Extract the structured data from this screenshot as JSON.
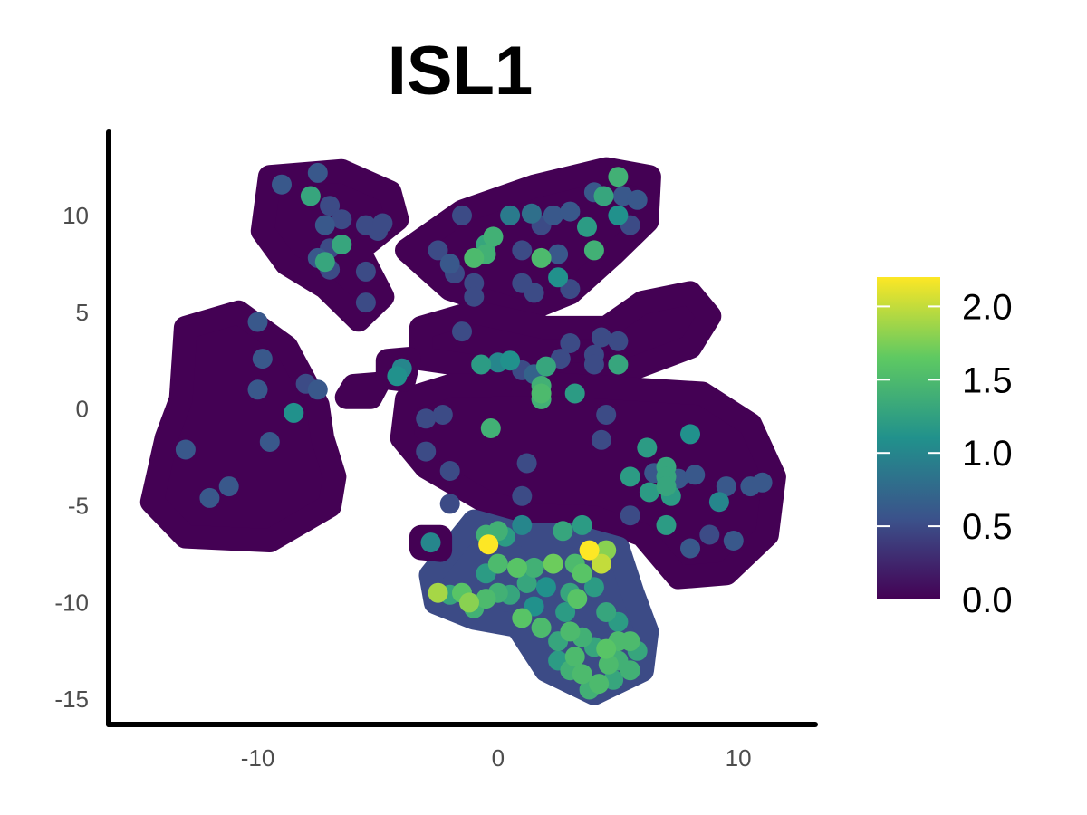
{
  "chart_data": {
    "type": "scatter",
    "title": "ISL1",
    "xlabel": "",
    "ylabel": "",
    "xlim": [
      -16.2,
      13.2
    ],
    "ylim": [
      -16.3,
      14.3
    ],
    "x_ticks": [
      -10,
      0,
      10
    ],
    "y_ticks": [
      -15,
      -10,
      -5,
      0,
      5,
      10
    ],
    "grid": false,
    "color_scale": {
      "name": "viridis",
      "min": 0.0,
      "max": 2.2,
      "ticks": [
        0.0,
        0.5,
        1.0,
        1.5,
        2.0
      ],
      "tick_labels": [
        "0.0",
        "0.5",
        "1.0",
        "1.5",
        "2.0"
      ],
      "legend_position": "right",
      "stops": [
        "#440154",
        "#3b528b",
        "#21918c",
        "#5ec962",
        "#fde725"
      ]
    },
    "background_regions": [
      {
        "name": "cluster-top-left",
        "value": 0.0,
        "outline": [
          [
            -9.5,
            12.0
          ],
          [
            -6.5,
            12.3
          ],
          [
            -4.5,
            11.2
          ],
          [
            -4.2,
            9.8
          ],
          [
            -5.8,
            8.2
          ],
          [
            -4.8,
            5.8
          ],
          [
            -5.8,
            4.6
          ],
          [
            -7.2,
            6.3
          ],
          [
            -8.8,
            7.5
          ],
          [
            -9.8,
            9.2
          ]
        ]
      },
      {
        "name": "cluster-top-right",
        "value": 0.0,
        "outline": [
          [
            -3.8,
            8.2
          ],
          [
            -1.5,
            10.2
          ],
          [
            1.5,
            11.5
          ],
          [
            4.5,
            12.4
          ],
          [
            6.3,
            12.0
          ],
          [
            6.2,
            9.7
          ],
          [
            4.8,
            8.0
          ],
          [
            3.0,
            6.0
          ],
          [
            1.0,
            5.0
          ],
          [
            -2.0,
            6.2
          ]
        ]
      },
      {
        "name": "cluster-left",
        "value": 0.0,
        "outline": [
          [
            -13.0,
            4.2
          ],
          [
            -10.8,
            5.0
          ],
          [
            -8.8,
            3.2
          ],
          [
            -7.5,
            0.2
          ],
          [
            -7.3,
            -1.5
          ],
          [
            -6.8,
            -3.5
          ],
          [
            -7.0,
            -5.0
          ],
          [
            -9.5,
            -6.8
          ],
          [
            -13.0,
            -6.6
          ],
          [
            -14.4,
            -4.8
          ],
          [
            -13.8,
            -1.5
          ],
          [
            -13.2,
            0.5
          ]
        ]
      },
      {
        "name": "cluster-mid-upper",
        "value": 0.0,
        "outline": [
          [
            -3.2,
            4.2
          ],
          [
            -1.0,
            5.0
          ],
          [
            2.0,
            4.2
          ],
          [
            4.5,
            4.2
          ],
          [
            6.0,
            5.5
          ],
          [
            8.0,
            6.0
          ],
          [
            8.8,
            4.8
          ],
          [
            8.0,
            3.2
          ],
          [
            5.0,
            1.8
          ],
          [
            2.0,
            1.8
          ],
          [
            -1.0,
            2.2
          ],
          [
            -3.2,
            2.6
          ]
        ]
      },
      {
        "name": "cluster-center",
        "value": 0.0,
        "outline": [
          [
            -3.8,
            0.5
          ],
          [
            -2.0,
            1.2
          ],
          [
            2.0,
            1.3
          ],
          [
            6.0,
            1.0
          ],
          [
            8.5,
            0.8
          ],
          [
            10.5,
            -0.8
          ],
          [
            11.5,
            -3.5
          ],
          [
            11.2,
            -6.5
          ],
          [
            9.5,
            -8.5
          ],
          [
            7.5,
            -8.7
          ],
          [
            6.0,
            -6.5
          ],
          [
            4.0,
            -5.6
          ],
          [
            1.5,
            -5.5
          ],
          [
            -0.5,
            -4.8
          ],
          [
            -3.0,
            -3.0
          ],
          [
            -4.0,
            -1.5
          ]
        ]
      },
      {
        "name": "cluster-bottom",
        "value": 0.5,
        "outline": [
          [
            -2.8,
            -8.6
          ],
          [
            -1.0,
            -5.8
          ],
          [
            1.0,
            -6.5
          ],
          [
            3.0,
            -6.5
          ],
          [
            5.0,
            -7.2
          ],
          [
            5.6,
            -9.5
          ],
          [
            6.2,
            -11.5
          ],
          [
            6.0,
            -13.5
          ],
          [
            4.0,
            -14.7
          ],
          [
            2.0,
            -13.5
          ],
          [
            0.8,
            -11.2
          ],
          [
            -1.0,
            -10.8
          ],
          [
            -2.6,
            -10.0
          ]
        ]
      },
      {
        "name": "island-a",
        "value": 0.0,
        "outline": [
          [
            -6.0,
            1.2
          ],
          [
            -5.0,
            1.3
          ],
          [
            -5.3,
            0.6
          ],
          [
            -6.3,
            0.6
          ]
        ]
      },
      {
        "name": "island-b",
        "value": 0.0,
        "outline": [
          [
            -4.6,
            2.5
          ],
          [
            -3.7,
            2.6
          ],
          [
            -3.9,
            1.5
          ],
          [
            -4.6,
            1.6
          ]
        ]
      },
      {
        "name": "island-c",
        "value": 0.0,
        "outline": [
          [
            -3.2,
            -6.6
          ],
          [
            -2.4,
            -6.6
          ],
          [
            -2.4,
            -7.3
          ],
          [
            -3.2,
            -7.2
          ]
        ]
      }
    ],
    "points": [
      {
        "x": -9.0,
        "y": 11.6,
        "v": 0.6
      },
      {
        "x": -7.5,
        "y": 12.2,
        "v": 0.6
      },
      {
        "x": -7.8,
        "y": 11.0,
        "v": 1.3
      },
      {
        "x": -7.0,
        "y": 10.5,
        "v": 0.5
      },
      {
        "x": -6.5,
        "y": 9.8,
        "v": 0.5
      },
      {
        "x": -7.2,
        "y": 9.5,
        "v": 0.6
      },
      {
        "x": -6.5,
        "y": 8.5,
        "v": 1.3
      },
      {
        "x": -7.0,
        "y": 8.3,
        "v": 0.5
      },
      {
        "x": -7.5,
        "y": 7.8,
        "v": 0.6
      },
      {
        "x": -7.0,
        "y": 7.2,
        "v": 0.5
      },
      {
        "x": -7.2,
        "y": 7.6,
        "v": 1.3
      },
      {
        "x": -5.5,
        "y": 7.1,
        "v": 0.5
      },
      {
        "x": -5.5,
        "y": 5.5,
        "v": 0.5
      },
      {
        "x": -5.5,
        "y": 9.5,
        "v": 0.5
      },
      {
        "x": -5.0,
        "y": 9.2,
        "v": 0.5
      },
      {
        "x": -4.8,
        "y": 9.6,
        "v": 0.5
      },
      {
        "x": -0.5,
        "y": 8.5,
        "v": 1.3
      },
      {
        "x": -0.2,
        "y": 8.9,
        "v": 1.4
      },
      {
        "x": 0.5,
        "y": 10.0,
        "v": 0.9
      },
      {
        "x": 1.4,
        "y": 10.1,
        "v": 0.8
      },
      {
        "x": 2.3,
        "y": 10.0,
        "v": 0.6
      },
      {
        "x": 1.8,
        "y": 9.5,
        "v": 0.5
      },
      {
        "x": 3.0,
        "y": 10.2,
        "v": 0.6
      },
      {
        "x": 3.7,
        "y": 9.4,
        "v": 1.2
      },
      {
        "x": 4.0,
        "y": 11.2,
        "v": 0.6
      },
      {
        "x": 4.4,
        "y": 11.0,
        "v": 1.3
      },
      {
        "x": 5.0,
        "y": 12.0,
        "v": 1.4
      },
      {
        "x": 5.2,
        "y": 11.0,
        "v": 0.6
      },
      {
        "x": 5.8,
        "y": 10.8,
        "v": 0.6
      },
      {
        "x": 5.0,
        "y": 10.0,
        "v": 1.1
      },
      {
        "x": 5.5,
        "y": 9.5,
        "v": 0.5
      },
      {
        "x": 4.0,
        "y": 8.2,
        "v": 1.4
      },
      {
        "x": 2.5,
        "y": 8.0,
        "v": 0.6
      },
      {
        "x": 1.8,
        "y": 7.8,
        "v": 1.5
      },
      {
        "x": 1.0,
        "y": 8.2,
        "v": 0.5
      },
      {
        "x": -1.0,
        "y": 7.8,
        "v": 1.5
      },
      {
        "x": -0.5,
        "y": 8.0,
        "v": 1.4
      },
      {
        "x": -2.0,
        "y": 7.5,
        "v": 0.6
      },
      {
        "x": -1.8,
        "y": 7.0,
        "v": 0.5
      },
      {
        "x": -1.0,
        "y": 6.5,
        "v": 0.5
      },
      {
        "x": 1.0,
        "y": 6.5,
        "v": 0.5
      },
      {
        "x": 1.5,
        "y": 6.0,
        "v": 0.5
      },
      {
        "x": 2.5,
        "y": 6.8,
        "v": 1.1
      },
      {
        "x": 3.0,
        "y": 6.2,
        "v": 0.5
      },
      {
        "x": -1.0,
        "y": 5.8,
        "v": 0.5
      },
      {
        "x": -1.5,
        "y": 10.0,
        "v": 0.5
      },
      {
        "x": -2.5,
        "y": 8.2,
        "v": 0.5
      },
      {
        "x": -10.0,
        "y": 4.5,
        "v": 0.6
      },
      {
        "x": -9.8,
        "y": 2.6,
        "v": 0.6
      },
      {
        "x": -8.0,
        "y": 1.3,
        "v": 0.5
      },
      {
        "x": -7.5,
        "y": 1.0,
        "v": 0.6
      },
      {
        "x": -10.0,
        "y": 1.0,
        "v": 0.6
      },
      {
        "x": -8.5,
        "y": -0.2,
        "v": 1.1
      },
      {
        "x": -9.5,
        "y": -1.7,
        "v": 0.6
      },
      {
        "x": -13.0,
        "y": -2.1,
        "v": 0.6
      },
      {
        "x": -12.0,
        "y": -4.6,
        "v": 0.6
      },
      {
        "x": -11.2,
        "y": -4.0,
        "v": 0.6
      },
      {
        "x": -4.0,
        "y": 2.1,
        "v": 1.0
      },
      {
        "x": -4.2,
        "y": 1.7,
        "v": 1.1
      },
      {
        "x": -1.5,
        "y": 4.0,
        "v": 0.5
      },
      {
        "x": -0.7,
        "y": 2.3,
        "v": 1.2
      },
      {
        "x": 0.0,
        "y": 2.4,
        "v": 1.0
      },
      {
        "x": 0.5,
        "y": 2.5,
        "v": 1.1
      },
      {
        "x": 1.0,
        "y": 2.0,
        "v": 0.5
      },
      {
        "x": 1.5,
        "y": 1.8,
        "v": 0.7
      },
      {
        "x": 1.8,
        "y": 1.2,
        "v": 1.4
      },
      {
        "x": 1.8,
        "y": 0.8,
        "v": 1.5
      },
      {
        "x": 2.0,
        "y": 2.2,
        "v": 1.3
      },
      {
        "x": 2.6,
        "y": 2.6,
        "v": 0.5
      },
      {
        "x": 3.0,
        "y": 3.4,
        "v": 0.5
      },
      {
        "x": 4.0,
        "y": 2.8,
        "v": 0.5
      },
      {
        "x": 4.3,
        "y": 3.7,
        "v": 0.5
      },
      {
        "x": 5.0,
        "y": 3.5,
        "v": 0.5
      },
      {
        "x": 3.2,
        "y": 0.8,
        "v": 1.2
      },
      {
        "x": 4.0,
        "y": 2.3,
        "v": 0.5
      },
      {
        "x": 5.0,
        "y": 2.3,
        "v": 1.3
      },
      {
        "x": 1.8,
        "y": 0.5,
        "v": 1.4
      },
      {
        "x": -2.3,
        "y": -0.3,
        "v": 0.5
      },
      {
        "x": -3.0,
        "y": -0.5,
        "v": 0.5
      },
      {
        "x": -3.0,
        "y": -2.2,
        "v": 0.5
      },
      {
        "x": -2.0,
        "y": -3.2,
        "v": 0.5
      },
      {
        "x": -2.0,
        "y": -4.9,
        "v": 0.5
      },
      {
        "x": -0.3,
        "y": -1.0,
        "v": 1.4
      },
      {
        "x": 1.2,
        "y": -2.8,
        "v": 0.5
      },
      {
        "x": 1.0,
        "y": -4.5,
        "v": 0.5
      },
      {
        "x": 4.5,
        "y": -0.3,
        "v": 0.5
      },
      {
        "x": 4.3,
        "y": -1.6,
        "v": 0.5
      },
      {
        "x": 6.2,
        "y": -2.0,
        "v": 1.2
      },
      {
        "x": 7.0,
        "y": -3.0,
        "v": 1.3
      },
      {
        "x": 5.5,
        "y": -3.5,
        "v": 1.2
      },
      {
        "x": 6.5,
        "y": -3.3,
        "v": 0.6
      },
      {
        "x": 7.0,
        "y": -3.5,
        "v": 1.3
      },
      {
        "x": 7.5,
        "y": -3.6,
        "v": 0.6
      },
      {
        "x": 7.0,
        "y": -4.0,
        "v": 1.3
      },
      {
        "x": 6.3,
        "y": -4.3,
        "v": 1.2
      },
      {
        "x": 7.2,
        "y": -4.5,
        "v": 1.2
      },
      {
        "x": 8.0,
        "y": -1.3,
        "v": 1.1
      },
      {
        "x": 8.2,
        "y": -3.4,
        "v": 0.6
      },
      {
        "x": 9.5,
        "y": -4.0,
        "v": 0.6
      },
      {
        "x": 10.5,
        "y": -4.0,
        "v": 0.6
      },
      {
        "x": 11.0,
        "y": -3.8,
        "v": 0.6
      },
      {
        "x": 9.2,
        "y": -4.8,
        "v": 1.0
      },
      {
        "x": 7.0,
        "y": -6.0,
        "v": 1.2
      },
      {
        "x": 5.5,
        "y": -5.5,
        "v": 0.5
      },
      {
        "x": 8.0,
        "y": -7.2,
        "v": 0.6
      },
      {
        "x": 9.8,
        "y": -6.8,
        "v": 0.6
      },
      {
        "x": 8.8,
        "y": -6.5,
        "v": 0.5
      },
      {
        "x": -2.8,
        "y": -6.9,
        "v": 1.0
      },
      {
        "x": -0.4,
        "y": -7.0,
        "v": 2.2
      },
      {
        "x": 0.0,
        "y": -6.3,
        "v": 1.4
      },
      {
        "x": 0.3,
        "y": -6.6,
        "v": 1.2
      },
      {
        "x": -0.5,
        "y": -6.5,
        "v": 1.4
      },
      {
        "x": 1.0,
        "y": -6.0,
        "v": 1.0
      },
      {
        "x": 2.7,
        "y": -6.3,
        "v": 1.3
      },
      {
        "x": 3.5,
        "y": -6.0,
        "v": 1.2
      },
      {
        "x": 3.8,
        "y": -7.3,
        "v": 2.2
      },
      {
        "x": 4.3,
        "y": -8.0,
        "v": 2.0
      },
      {
        "x": 4.5,
        "y": -7.3,
        "v": 1.8
      },
      {
        "x": 3.5,
        "y": -8.5,
        "v": 1.6
      },
      {
        "x": 3.2,
        "y": -8.0,
        "v": 1.5
      },
      {
        "x": 2.3,
        "y": -8.0,
        "v": 1.7
      },
      {
        "x": 1.5,
        "y": -8.2,
        "v": 1.4
      },
      {
        "x": 0.8,
        "y": -8.2,
        "v": 1.6
      },
      {
        "x": 0.0,
        "y": -8.0,
        "v": 1.5
      },
      {
        "x": -0.5,
        "y": -8.5,
        "v": 1.2
      },
      {
        "x": 1.2,
        "y": -9.0,
        "v": 1.3
      },
      {
        "x": 2.0,
        "y": -9.2,
        "v": 1.1
      },
      {
        "x": 3.0,
        "y": -9.5,
        "v": 1.3
      },
      {
        "x": 3.3,
        "y": -9.8,
        "v": 1.6
      },
      {
        "x": 4.0,
        "y": -9.2,
        "v": 1.2
      },
      {
        "x": -2.5,
        "y": -9.5,
        "v": 1.9
      },
      {
        "x": -2.0,
        "y": -9.6,
        "v": 1.3
      },
      {
        "x": -1.5,
        "y": -9.5,
        "v": 1.6
      },
      {
        "x": -1.2,
        "y": -10.0,
        "v": 1.8
      },
      {
        "x": -0.5,
        "y": -9.8,
        "v": 1.5
      },
      {
        "x": 0.0,
        "y": -9.5,
        "v": 1.4
      },
      {
        "x": 0.5,
        "y": -9.6,
        "v": 1.3
      },
      {
        "x": -1.0,
        "y": -10.3,
        "v": 1.4
      },
      {
        "x": 1.0,
        "y": -10.8,
        "v": 1.6
      },
      {
        "x": 1.8,
        "y": -11.3,
        "v": 1.5
      },
      {
        "x": 2.5,
        "y": -12.0,
        "v": 1.3
      },
      {
        "x": 3.0,
        "y": -11.5,
        "v": 1.5
      },
      {
        "x": 3.2,
        "y": -12.8,
        "v": 1.5
      },
      {
        "x": 3.5,
        "y": -11.8,
        "v": 1.4
      },
      {
        "x": 4.0,
        "y": -12.3,
        "v": 1.3
      },
      {
        "x": 4.5,
        "y": -12.4,
        "v": 1.6
      },
      {
        "x": 5.0,
        "y": -12.0,
        "v": 1.5
      },
      {
        "x": 5.0,
        "y": -13.0,
        "v": 1.4
      },
      {
        "x": 4.6,
        "y": -13.2,
        "v": 1.5
      },
      {
        "x": 3.5,
        "y": -13.7,
        "v": 1.5
      },
      {
        "x": 3.0,
        "y": -13.5,
        "v": 1.4
      },
      {
        "x": 4.2,
        "y": -14.2,
        "v": 1.5
      },
      {
        "x": 4.8,
        "y": -14.0,
        "v": 1.3
      },
      {
        "x": 5.5,
        "y": -13.5,
        "v": 1.4
      },
      {
        "x": 5.5,
        "y": -12.0,
        "v": 1.5
      },
      {
        "x": 5.8,
        "y": -12.5,
        "v": 1.3
      },
      {
        "x": 2.5,
        "y": -13.0,
        "v": 1.2
      },
      {
        "x": 3.8,
        "y": -14.5,
        "v": 1.4
      },
      {
        "x": 5.0,
        "y": -11.0,
        "v": 1.2
      },
      {
        "x": 4.5,
        "y": -10.5,
        "v": 1.3
      },
      {
        "x": 2.8,
        "y": -10.5,
        "v": 1.2
      },
      {
        "x": 1.5,
        "y": -10.2,
        "v": 1.1
      }
    ]
  }
}
